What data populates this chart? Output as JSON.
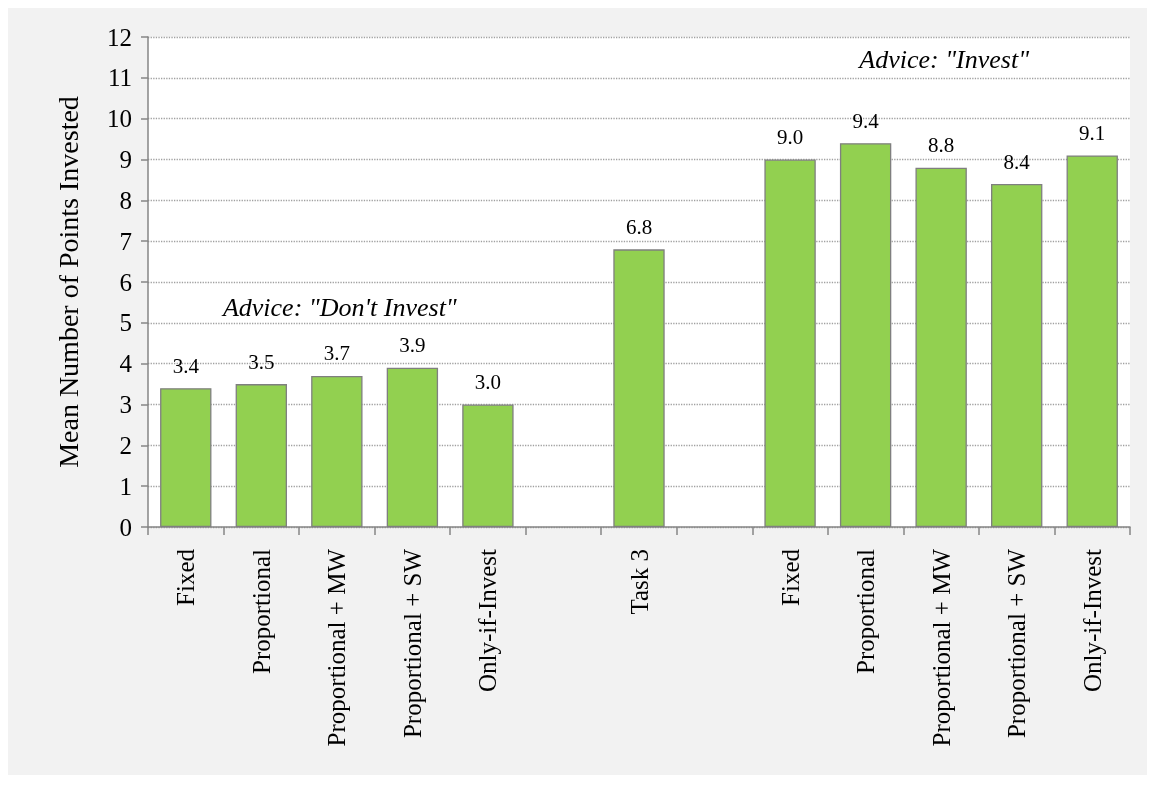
{
  "chart_data": {
    "type": "bar",
    "ylabel": "Mean Number of Points Invested",
    "categories": [
      "Fixed",
      "Proportional",
      "Proportional + MW",
      "Proportional + SW",
      "Only-if-Invest",
      null,
      "Task 3",
      null,
      "Fixed",
      "Proportional",
      "Proportional + MW",
      "Proportional + SW",
      "Only-if-Invest"
    ],
    "values": [
      3.4,
      3.5,
      3.7,
      3.9,
      3.0,
      null,
      6.8,
      null,
      9.0,
      9.4,
      8.8,
      8.4,
      9.1
    ],
    "value_labels": [
      "3.4",
      "3.5",
      "3.7",
      "3.9",
      "3.0",
      null,
      "6.8",
      null,
      "9.0",
      "9.4",
      "8.8",
      "8.4",
      "9.1"
    ],
    "color": "#92d050",
    "ylim": [
      0,
      12
    ],
    "yticks": [
      0,
      1,
      2,
      3,
      4,
      5,
      6,
      7,
      8,
      9,
      10,
      11,
      12
    ],
    "grid": "y",
    "annotations": [
      "Advice: \"Don't Invest\"",
      "Advice: \"Invest\""
    ]
  }
}
